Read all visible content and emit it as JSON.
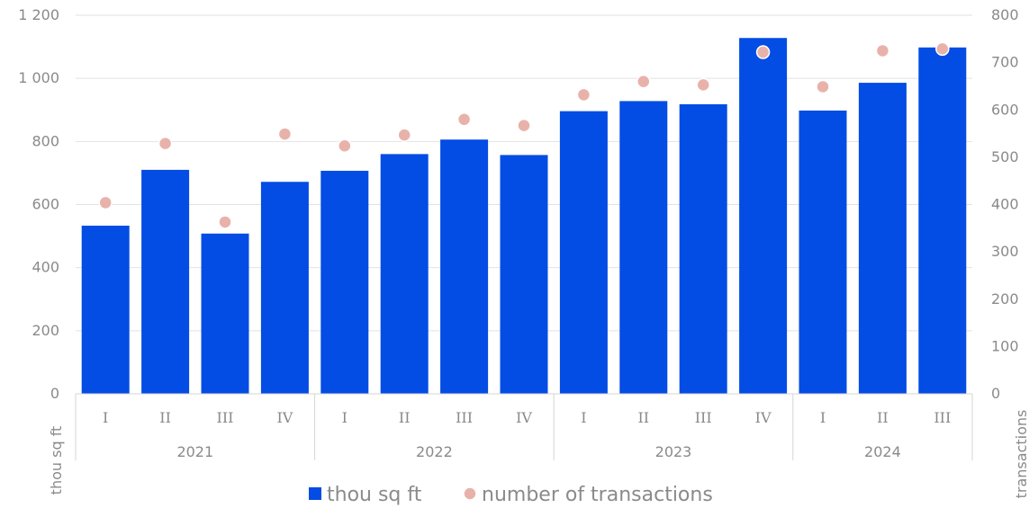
{
  "chart_data": {
    "type": "bar",
    "categories": [
      "I",
      "II",
      "III",
      "IV",
      "I",
      "II",
      "III",
      "IV",
      "I",
      "II",
      "III",
      "IV",
      "I",
      "II",
      "III"
    ],
    "groups": [
      {
        "label": "2021",
        "count": 4
      },
      {
        "label": "2022",
        "count": 4
      },
      {
        "label": "2023",
        "count": 4
      },
      {
        "label": "2024",
        "count": 3
      }
    ],
    "series": [
      {
        "name": "thou sq ft",
        "type": "bar",
        "axis": "left",
        "color": "#034ce4",
        "values": [
          533,
          710,
          508,
          672,
          707,
          760,
          806,
          757,
          896,
          928,
          918,
          1128,
          898,
          986,
          1098
        ]
      },
      {
        "name": "number of transactions",
        "type": "scatter",
        "axis": "right",
        "color": "#e8b2aa",
        "values": [
          404,
          529,
          363,
          549,
          524,
          547,
          580,
          567,
          632,
          660,
          653,
          722,
          649,
          725,
          729
        ]
      }
    ],
    "ylabel": "thou sq ft",
    "y2label": "transactions",
    "ylim": [
      0,
      1200
    ],
    "y2lim": [
      0,
      800
    ],
    "yticks": [
      0,
      200,
      400,
      600,
      800,
      1000,
      1200
    ],
    "y2ticks": [
      0,
      100,
      200,
      300,
      400,
      500,
      600,
      700,
      800
    ],
    "ytick_labels": [
      "0",
      "200",
      "400",
      "600",
      "800",
      "1 000",
      "1 200"
    ],
    "y2tick_labels": [
      "0",
      "100",
      "200",
      "300",
      "400",
      "500",
      "600",
      "700",
      "800"
    ],
    "grid": true,
    "legend": "bottom"
  }
}
